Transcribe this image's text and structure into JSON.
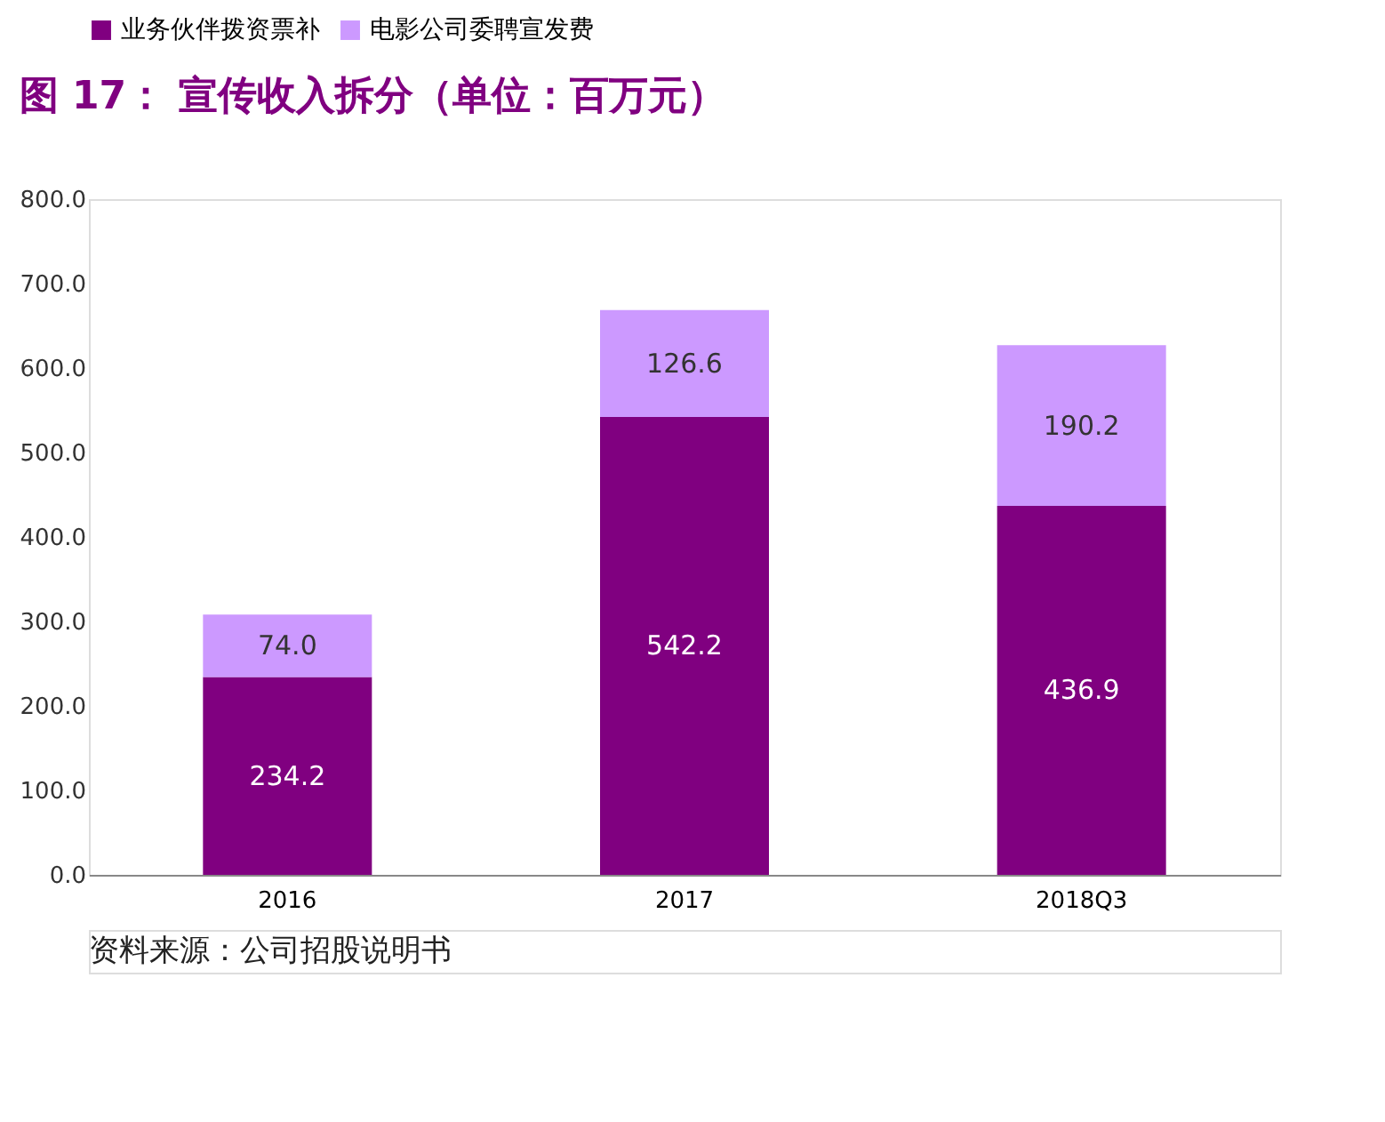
{
  "chart_data": {
    "type": "bar",
    "title": "图 17：  宣传收入拆分（单位：百万元）",
    "categories": [
      "2016",
      "2017",
      "2018Q3"
    ],
    "stacked": true,
    "series": [
      {
        "name": "业务伙伴拨资票补",
        "color": "#800080",
        "values": [
          234.2,
          542.2,
          436.9
        ],
        "value_labels": [
          "234.2",
          "542.2",
          "436.9"
        ]
      },
      {
        "name": "电影公司委聘宣发费",
        "color": "#cc99ff",
        "values": [
          74.0,
          126.6,
          190.2
        ],
        "value_labels": [
          "74.0",
          "126.6",
          "190.2"
        ]
      }
    ],
    "ylim": [
      0,
      800
    ],
    "yticks": [
      {
        "value": 0,
        "label": "0.0"
      },
      {
        "value": 100,
        "label": "100.0"
      },
      {
        "value": 200,
        "label": "200.0"
      },
      {
        "value": 300,
        "label": "300.0"
      },
      {
        "value": 400,
        "label": "400.0"
      },
      {
        "value": 500,
        "label": "500.0"
      },
      {
        "value": 600,
        "label": "600.0"
      },
      {
        "value": 700,
        "label": "700.0"
      },
      {
        "value": 800,
        "label": "800.0"
      }
    ],
    "grid": false,
    "legend": "top",
    "annotations": [
      "资料来源：公司招股说明书"
    ]
  }
}
